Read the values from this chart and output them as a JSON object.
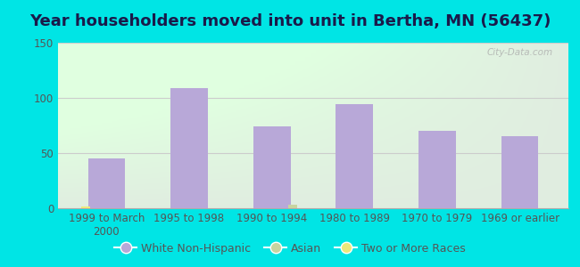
{
  "title": "Year householders moved into unit in Bertha, MN (56437)",
  "categories": [
    "1999 to March\n2000",
    "1995 to 1998",
    "1990 to 1994",
    "1980 to 1989",
    "1970 to 1979",
    "1969 or earlier"
  ],
  "white_non_hispanic": [
    45,
    109,
    74,
    94,
    70,
    65
  ],
  "asian": [
    0,
    0,
    3,
    0,
    0,
    0
  ],
  "two_or_more": [
    2,
    0,
    0,
    0,
    0,
    0
  ],
  "bar_color_white": "#b8a8d8",
  "bar_color_asian": "#c8d4a0",
  "bar_color_two": "#ede87a",
  "background_color": "#00e5e5",
  "ylim": [
    0,
    150
  ],
  "yticks": [
    0,
    50,
    100,
    150
  ],
  "title_fontsize": 13,
  "tick_fontsize": 8.5,
  "legend_fontsize": 9,
  "watermark": "City-Data.com"
}
